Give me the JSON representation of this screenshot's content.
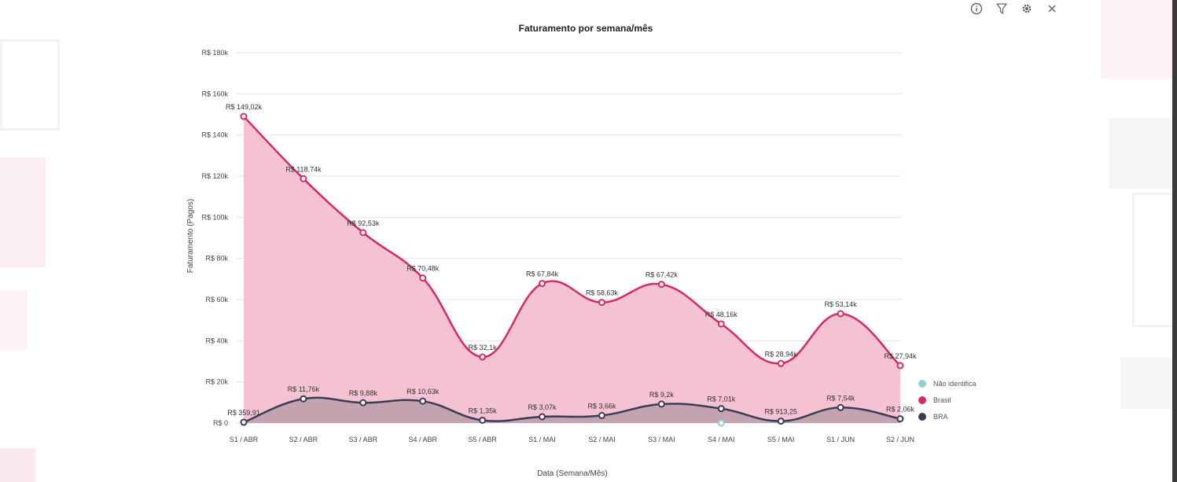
{
  "toolbar": {
    "info_icon": "info-icon",
    "filter_icon": "filter-icon",
    "settings_icon": "gear-icon",
    "close_icon": "close-icon"
  },
  "colors": {
    "brasil": "#d62b5e",
    "brasil_fill": "#f3bfcd",
    "bra": "#3b3d52",
    "bra_fill": "#9a8a94",
    "nao_identifica": "#8fd0d0",
    "grid": "#e6e6e6",
    "text": "#444444"
  },
  "chart_data": {
    "type": "area",
    "title": "Faturamento por semana/mês",
    "xlabel": "Data (Semana/Mês)",
    "ylabel": "Faturamento (Pagos)",
    "ylim": [
      0,
      180000
    ],
    "yticks": [
      0,
      20000,
      40000,
      60000,
      80000,
      100000,
      120000,
      140000,
      160000,
      180000
    ],
    "ytick_labels": [
      "R$ 0",
      "R$ 20k",
      "R$ 40k",
      "R$ 60k",
      "R$ 80k",
      "R$ 100k",
      "R$ 120k",
      "R$ 140k",
      "R$ 160k",
      "R$ 180k"
    ],
    "categories": [
      "S1 / ABR",
      "S2 / ABR",
      "S3 / ABR",
      "S4 / ABR",
      "S5 / ABR",
      "S1 / MAI",
      "S2 / MAI",
      "S3 / MAI",
      "S4 / MAI",
      "S5 / MAI",
      "S1 / JUN",
      "S2 / JUN"
    ],
    "grid": true,
    "legend_position": "right",
    "series": [
      {
        "name": "Não identifica",
        "values": [
          null,
          null,
          null,
          null,
          null,
          null,
          null,
          null,
          0,
          null,
          null,
          null
        ],
        "labels": [
          "",
          "",
          "",
          "",
          "",
          "",
          "",
          "",
          "",
          "",
          "",
          ""
        ]
      },
      {
        "name": "Brasil",
        "values": [
          149020,
          118740,
          92530,
          70480,
          32100,
          67840,
          58630,
          67420,
          48160,
          28940,
          53140,
          27940
        ],
        "labels": [
          "R$ 149,02k",
          "R$ 118,74k",
          "R$ 92,53k",
          "R$ 70,48k",
          "R$ 32,1k",
          "R$ 67,84k",
          "R$ 58,63k",
          "R$ 67,42k",
          "R$ 48,16k",
          "R$ 28,94k",
          "R$ 53,14k",
          "R$ 27,94k"
        ]
      },
      {
        "name": "BRA",
        "values": [
          359.91,
          11760,
          9880,
          10630,
          1350,
          3070,
          3660,
          9200,
          7010,
          913.25,
          7540,
          2060
        ],
        "labels": [
          "R$ 359,91",
          "R$ 11,76k",
          "R$ 9,88k",
          "R$ 10,63k",
          "R$ 1,35k",
          "R$ 3,07k",
          "R$ 3,66k",
          "R$ 9,2k",
          "R$ 7,01k",
          "R$ 913,25",
          "R$ 7,54k",
          "R$ 2,06k"
        ]
      }
    ]
  }
}
